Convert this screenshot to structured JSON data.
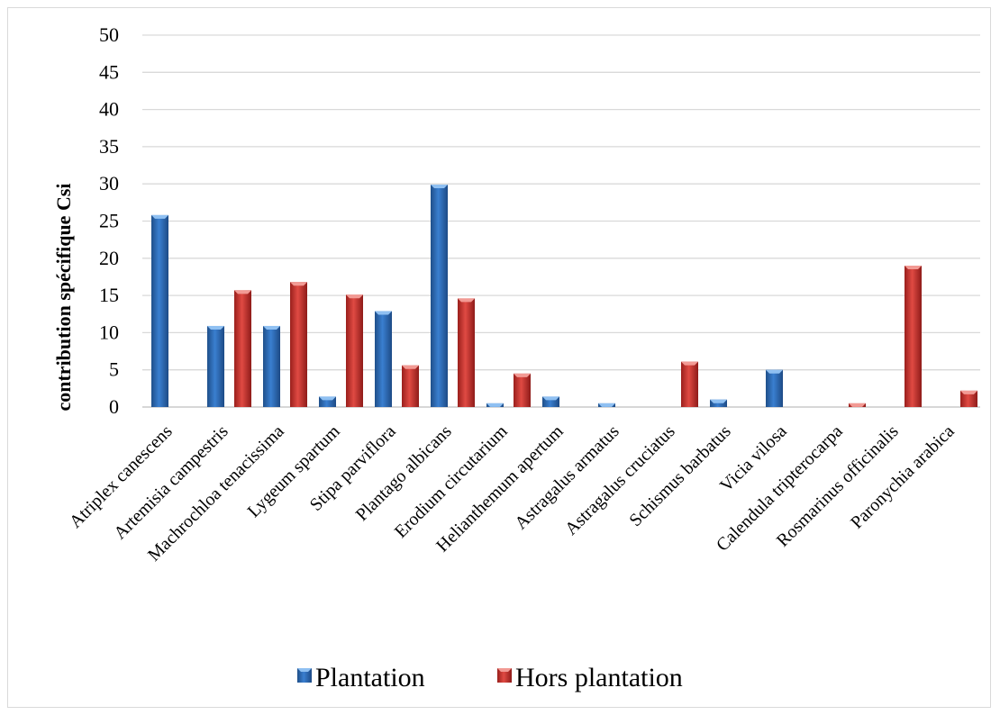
{
  "chart_data": {
    "type": "bar",
    "title": "",
    "xlabel": "",
    "ylabel": "contribution spécifique Csi",
    "ylim": [
      0,
      50
    ],
    "yticks": [
      0,
      5,
      10,
      15,
      20,
      25,
      30,
      35,
      40,
      45,
      50
    ],
    "grid": true,
    "legend_position": "bottom",
    "categories": [
      "Atriplex canescens",
      "Artemisia campestris",
      "Machrochloa tenacissima",
      "Lygeum spartum",
      "Stipa parviflora",
      "Plantago albicans",
      "Erodium circutarium",
      "Helianthemum apertum",
      "Astragalus armatus",
      "Astragalus cruciatus",
      "Schismus barbatus",
      "Vicia vilosa",
      "Calendula tripterocarpa",
      "Rosmarinus officinalis",
      "Paronychia arabica"
    ],
    "series": [
      {
        "name": "Plantation",
        "color": "#2e6db4",
        "values": [
          25.8,
          10.9,
          10.9,
          1.4,
          12.9,
          29.9,
          0.5,
          1.4,
          0.5,
          0,
          1.0,
          5.0,
          0,
          0,
          0
        ]
      },
      {
        "name": "Hors plantation",
        "color": "#c0302c",
        "values": [
          0,
          15.7,
          16.8,
          15.1,
          5.6,
          14.6,
          4.5,
          0,
          0,
          6.1,
          0,
          0,
          0.5,
          19.0,
          2.2
        ]
      }
    ]
  }
}
